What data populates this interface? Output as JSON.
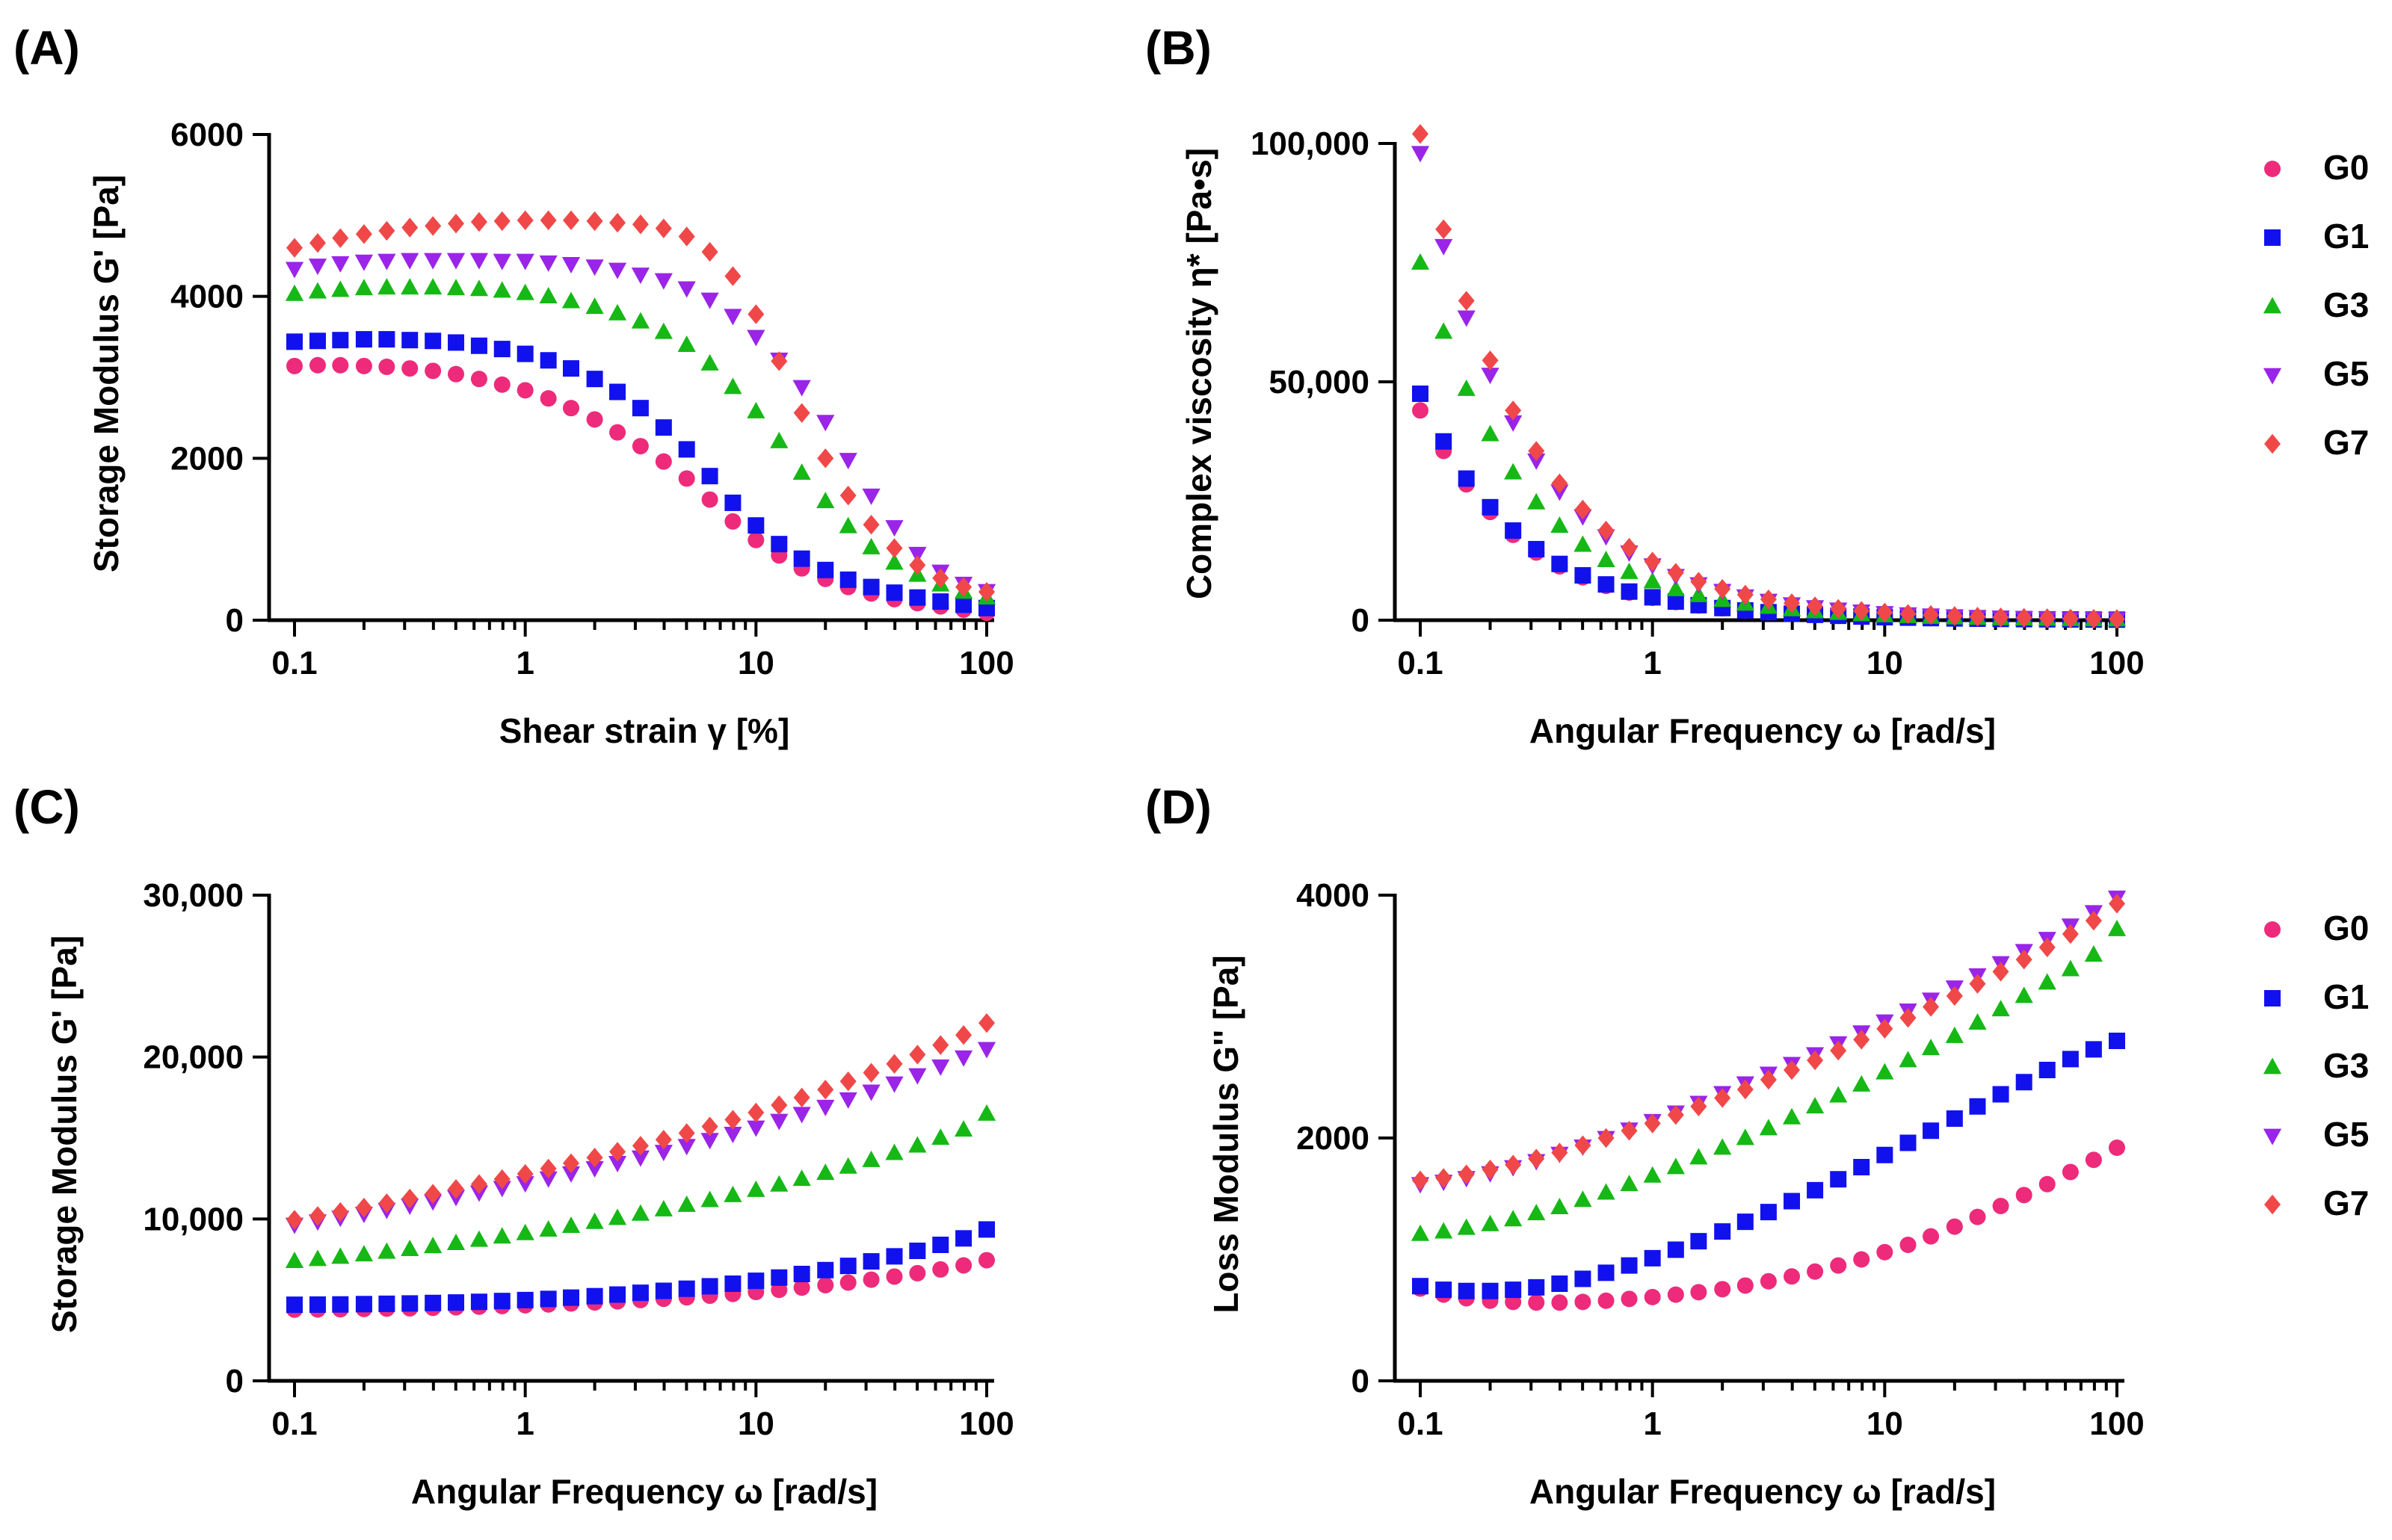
{
  "colors": {
    "G0": "#ee2a7b",
    "G1": "#1111ee",
    "G3": "#16b816",
    "G5": "#9a24e8",
    "G7": "#f04848"
  },
  "markers": {
    "G0": "circle",
    "G1": "square",
    "G3": "triangle-up",
    "G5": "triangle-down",
    "G7": "diamond"
  },
  "legend_top": {
    "entries": [
      "G0",
      "G1",
      "G3",
      "G5",
      "G7"
    ]
  },
  "legend_bottom": {
    "entries": [
      "G0",
      "G1",
      "G3",
      "G5",
      "G7"
    ]
  },
  "chart_data": [
    {
      "id": "A",
      "panel_label": "(A)",
      "type": "scatter",
      "xlabel": "Shear strain γ [%]",
      "ylabel": "Storage Modulus G' [Pa]",
      "xscale": "log",
      "xlim": [
        0.1,
        100
      ],
      "ylim": [
        0,
        6000
      ],
      "xticks": [
        0.1,
        1,
        10,
        100
      ],
      "xtick_labels": [
        "0.1",
        "1",
        "10",
        "100"
      ],
      "yticks": [
        0,
        2000,
        4000,
        6000
      ],
      "ytick_labels": [
        "0",
        "2000",
        "4000",
        "6000"
      ],
      "x": [
        0.1,
        0.126,
        0.158,
        0.2,
        0.251,
        0.316,
        0.398,
        0.501,
        0.631,
        0.794,
        1,
        1.26,
        1.58,
        2,
        2.51,
        3.16,
        3.98,
        5.01,
        6.31,
        7.94,
        10,
        12.6,
        15.8,
        20,
        25.1,
        31.6,
        39.8,
        50.1,
        63.1,
        79.4,
        100
      ],
      "series": [
        {
          "name": "G0",
          "values": [
            3140,
            3150,
            3150,
            3140,
            3130,
            3110,
            3080,
            3040,
            2980,
            2910,
            2840,
            2740,
            2620,
            2480,
            2320,
            2150,
            1960,
            1750,
            1490,
            1220,
            990,
            800,
            640,
            510,
            410,
            330,
            260,
            210,
            170,
            130,
            90
          ]
        },
        {
          "name": "G1",
          "values": [
            3440,
            3450,
            3460,
            3470,
            3470,
            3460,
            3450,
            3430,
            3390,
            3350,
            3290,
            3210,
            3110,
            2980,
            2820,
            2620,
            2380,
            2110,
            1780,
            1450,
            1170,
            940,
            760,
            620,
            500,
            410,
            340,
            280,
            230,
            190,
            150
          ]
        },
        {
          "name": "G3",
          "values": [
            4030,
            4060,
            4080,
            4100,
            4110,
            4110,
            4110,
            4100,
            4090,
            4070,
            4040,
            4000,
            3940,
            3870,
            3790,
            3690,
            3560,
            3400,
            3170,
            2880,
            2580,
            2210,
            1820,
            1470,
            1160,
            900,
            710,
            560,
            440,
            350,
            280
          ]
        },
        {
          "name": "G5",
          "values": [
            4340,
            4380,
            4410,
            4430,
            4440,
            4450,
            4450,
            4450,
            4450,
            4440,
            4440,
            4420,
            4400,
            4370,
            4330,
            4270,
            4200,
            4100,
            3960,
            3760,
            3500,
            3220,
            2880,
            2450,
            1980,
            1540,
            1150,
            820,
            600,
            450,
            360
          ]
        },
        {
          "name": "G7",
          "values": [
            4600,
            4660,
            4720,
            4770,
            4810,
            4850,
            4870,
            4900,
            4920,
            4930,
            4940,
            4940,
            4940,
            4930,
            4910,
            4890,
            4840,
            4740,
            4550,
            4250,
            3780,
            3200,
            2560,
            2000,
            1540,
            1180,
            890,
            680,
            520,
            410,
            350
          ]
        }
      ]
    },
    {
      "id": "B",
      "panel_label": "(B)",
      "type": "scatter",
      "xlabel": "Angular Frequency ω [rad/s]",
      "ylabel": "Complex viscosity η* [Pa•s]",
      "xscale": "log",
      "xlim": [
        0.1,
        100
      ],
      "ylim": [
        0,
        100000
      ],
      "xticks": [
        0.1,
        1,
        10,
        100
      ],
      "xtick_labels": [
        "0.1",
        "1",
        "10",
        "100"
      ],
      "yticks": [
        0,
        50000,
        100000
      ],
      "ytick_labels": [
        "0",
        "50,000",
        "100,000"
      ],
      "x": [
        0.1,
        0.126,
        0.158,
        0.2,
        0.251,
        0.316,
        0.398,
        0.501,
        0.631,
        0.794,
        1,
        1.26,
        1.58,
        2,
        2.51,
        3.16,
        3.98,
        5.01,
        6.31,
        7.94,
        10,
        12.6,
        15.8,
        20,
        25.1,
        31.6,
        39.8,
        50.1,
        63.1,
        79.4,
        100
      ],
      "series": [
        {
          "name": "G0",
          "values": [
            44000,
            35500,
            28500,
            22700,
            17900,
            14200,
            11300,
            9000,
            7200,
            5800,
            4700,
            3800,
            3100,
            2500,
            2000,
            1650,
            1350,
            1100,
            900,
            750,
            620,
            520,
            430,
            360,
            300,
            250,
            210,
            180,
            150,
            125,
            105
          ]
        },
        {
          "name": "G1",
          "values": [
            47500,
            37500,
            29700,
            23700,
            18800,
            14900,
            11800,
            9400,
            7500,
            6000,
            4800,
            3900,
            3150,
            2550,
            2050,
            1680,
            1370,
            1120,
            920,
            760,
            630,
            530,
            440,
            370,
            310,
            260,
            220,
            185,
            155,
            130,
            110
          ]
        },
        {
          "name": "G3",
          "values": [
            75000,
            60500,
            48500,
            39000,
            31000,
            24700,
            19800,
            15800,
            12600,
            10100,
            8100,
            6500,
            5250,
            4250,
            3450,
            2800,
            2280,
            1860,
            1520,
            1250,
            1030,
            850,
            700,
            580,
            480,
            400,
            340,
            285,
            240,
            200,
            170
          ]
        },
        {
          "name": "G5",
          "values": [
            98000,
            78500,
            63500,
            51500,
            41500,
            33500,
            27000,
            21800,
            17600,
            14200,
            11500,
            9300,
            7550,
            6150,
            5000,
            4080,
            3330,
            2720,
            2230,
            1830,
            1500,
            1230,
            1010,
            830,
            690,
            570,
            470,
            390,
            320,
            270,
            225
          ]
        },
        {
          "name": "G7",
          "values": [
            102000,
            82000,
            67000,
            54500,
            44000,
            35500,
            28700,
            23200,
            18800,
            15200,
            12300,
            9950,
            8080,
            6570,
            5350,
            4360,
            3560,
            2910,
            2380,
            1950,
            1600,
            1310,
            1080,
            890,
            730,
            600,
            500,
            410,
            340,
            285,
            235
          ]
        }
      ]
    },
    {
      "id": "C",
      "panel_label": "(C)",
      "type": "scatter",
      "xlabel": "Angular Frequency ω [rad/s]",
      "ylabel": "Storage Modulus G' [Pa]",
      "xscale": "log",
      "xlim": [
        0.1,
        100
      ],
      "ylim": [
        0,
        30000
      ],
      "xticks": [
        0.1,
        1,
        10,
        100
      ],
      "xtick_labels": [
        "0.1",
        "1",
        "10",
        "100"
      ],
      "yticks": [
        0,
        10000,
        20000,
        30000
      ],
      "ytick_labels": [
        "0",
        "10,000",
        "20,000",
        "30,000"
      ],
      "x": [
        0.1,
        0.126,
        0.158,
        0.2,
        0.251,
        0.316,
        0.398,
        0.501,
        0.631,
        0.794,
        1,
        1.26,
        1.58,
        2,
        2.51,
        3.16,
        3.98,
        5.01,
        6.31,
        7.94,
        10,
        12.6,
        15.8,
        20,
        25.1,
        31.6,
        39.8,
        50.1,
        63.1,
        79.4,
        100
      ],
      "series": [
        {
          "name": "G0",
          "values": [
            4400,
            4410,
            4420,
            4440,
            4460,
            4480,
            4510,
            4540,
            4580,
            4620,
            4670,
            4720,
            4780,
            4840,
            4910,
            4990,
            5070,
            5160,
            5260,
            5370,
            5490,
            5620,
            5760,
            5910,
            6070,
            6250,
            6440,
            6650,
            6880,
            7130,
            7450
          ]
        },
        {
          "name": "G1",
          "values": [
            4700,
            4710,
            4720,
            4740,
            4760,
            4780,
            4810,
            4840,
            4880,
            4930,
            4990,
            5060,
            5140,
            5230,
            5330,
            5440,
            5560,
            5690,
            5840,
            6000,
            6180,
            6380,
            6600,
            6840,
            7100,
            7380,
            7690,
            8030,
            8400,
            8800,
            9350
          ]
        },
        {
          "name": "G3",
          "values": [
            7400,
            7520,
            7660,
            7810,
            7970,
            8140,
            8320,
            8510,
            8710,
            8910,
            9120,
            9340,
            9570,
            9810,
            10060,
            10320,
            10590,
            10870,
            11160,
            11470,
            11790,
            12120,
            12470,
            12840,
            13230,
            13640,
            14070,
            14530,
            15010,
            15520,
            16500
          ]
        },
        {
          "name": "G5",
          "values": [
            9650,
            9850,
            10080,
            10320,
            10570,
            10830,
            11090,
            11360,
            11640,
            11920,
            12210,
            12510,
            12820,
            13140,
            13460,
            13800,
            14150,
            14510,
            14880,
            15260,
            15650,
            16060,
            16490,
            16930,
            17390,
            17870,
            18370,
            18880,
            19420,
            19980,
            20500
          ]
        },
        {
          "name": "G7",
          "values": [
            9950,
            10180,
            10430,
            10700,
            10970,
            11260,
            11550,
            11850,
            12150,
            12460,
            12780,
            13110,
            13440,
            13790,
            14150,
            14520,
            14900,
            15300,
            15710,
            16130,
            16570,
            17030,
            17500,
            17990,
            18500,
            19030,
            19580,
            20150,
            20740,
            21360,
            22100
          ]
        }
      ]
    },
    {
      "id": "D",
      "panel_label": "(D)",
      "type": "scatter",
      "xlabel": "Angular Frequency ω [rad/s]",
      "ylabel": "Loss Modulus G'' [Pa]",
      "xscale": "log",
      "xlim": [
        0.1,
        100
      ],
      "ylim": [
        0,
        4000
      ],
      "xticks": [
        0.1,
        1,
        10,
        100
      ],
      "xtick_labels": [
        "0.1",
        "1",
        "10",
        "100"
      ],
      "yticks": [
        0,
        2000,
        4000
      ],
      "ytick_labels": [
        "0",
        "2000",
        "4000"
      ],
      "x": [
        0.1,
        0.126,
        0.158,
        0.2,
        0.251,
        0.316,
        0.398,
        0.501,
        0.631,
        0.794,
        1,
        1.26,
        1.58,
        2,
        2.51,
        3.16,
        3.98,
        5.01,
        6.31,
        7.94,
        10,
        12.6,
        15.8,
        20,
        25.1,
        31.6,
        39.8,
        50.1,
        63.1,
        79.4,
        100
      ],
      "series": [
        {
          "name": "G0",
          "values": [
            760,
            710,
            680,
            660,
            650,
            645,
            645,
            650,
            660,
            675,
            690,
            710,
            730,
            755,
            785,
            820,
            860,
            900,
            950,
            1000,
            1060,
            1120,
            1190,
            1270,
            1350,
            1440,
            1530,
            1620,
            1720,
            1820,
            1920
          ]
        },
        {
          "name": "G1",
          "values": [
            780,
            750,
            740,
            740,
            750,
            770,
            800,
            840,
            890,
            950,
            1010,
            1080,
            1150,
            1230,
            1310,
            1390,
            1480,
            1570,
            1660,
            1760,
            1860,
            1960,
            2060,
            2160,
            2260,
            2360,
            2460,
            2560,
            2650,
            2730,
            2800
          ]
        },
        {
          "name": "G3",
          "values": [
            1210,
            1230,
            1260,
            1290,
            1330,
            1380,
            1430,
            1490,
            1550,
            1620,
            1690,
            1760,
            1840,
            1920,
            2000,
            2080,
            2170,
            2260,
            2350,
            2440,
            2540,
            2640,
            2740,
            2840,
            2950,
            3060,
            3170,
            3280,
            3390,
            3510,
            3720
          ]
        },
        {
          "name": "G5",
          "values": [
            1620,
            1640,
            1670,
            1710,
            1760,
            1810,
            1870,
            1930,
            2000,
            2070,
            2140,
            2210,
            2290,
            2370,
            2450,
            2530,
            2610,
            2690,
            2780,
            2870,
            2960,
            3050,
            3140,
            3240,
            3340,
            3440,
            3540,
            3640,
            3750,
            3860,
            3980
          ]
        },
        {
          "name": "G7",
          "values": [
            1650,
            1670,
            1700,
            1740,
            1780,
            1830,
            1880,
            1940,
            2000,
            2060,
            2120,
            2190,
            2260,
            2330,
            2400,
            2480,
            2560,
            2640,
            2720,
            2810,
            2900,
            2990,
            3080,
            3170,
            3270,
            3370,
            3470,
            3570,
            3680,
            3790,
            3930
          ]
        }
      ]
    }
  ]
}
